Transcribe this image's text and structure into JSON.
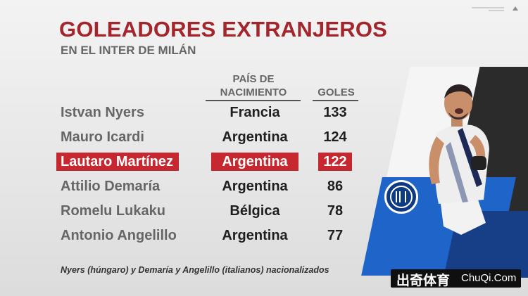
{
  "title": "GOLEADORES EXTRANJEROS",
  "subtitle": "EN EL INTER DE MILÁN",
  "headers": {
    "country_line1": "PAÍS DE",
    "country_line2": "NACIMIENTO",
    "goals": "GOLES"
  },
  "rows": [
    {
      "name": "Istvan Nyers",
      "country": "Francia",
      "goals": "133",
      "highlighted": false
    },
    {
      "name": "Mauro Icardi",
      "country": "Argentina",
      "goals": "124",
      "highlighted": false
    },
    {
      "name": "Lautaro Martínez",
      "country": "Argentina",
      "goals": "122",
      "highlighted": true
    },
    {
      "name": "Attilio Demaría",
      "country": "Argentina",
      "goals": "86",
      "highlighted": false
    },
    {
      "name": "Romelu Lukaku",
      "country": "Bélgica",
      "goals": "78",
      "highlighted": false
    },
    {
      "name": "Antonio Angelillo",
      "country": "Argentina",
      "goals": "77",
      "highlighted": false
    }
  ],
  "footnote": "Nyers (húngaro) y Demaría y Angelillo (italianos) nacionalizados",
  "watermark": {
    "chinese": "出奇体育",
    "latin": "ChuQi.Com"
  },
  "colors": {
    "accent": "#c7272e",
    "title": "#a2262c",
    "inter_blue": "#1f64c8"
  },
  "icons": {
    "club_logo": "inter-milan-crest-icon",
    "player": "player-celebrating-image"
  }
}
